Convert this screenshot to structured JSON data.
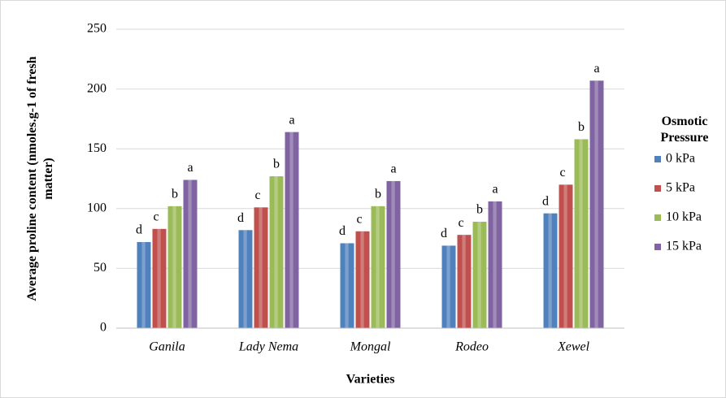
{
  "chart_data": {
    "type": "bar",
    "x_label": "Varieties",
    "y_label": "Average proline content (nmoles.g-1 of fresh matter)",
    "legend_title": "Osmotic Pressure",
    "categories": [
      "Ganila",
      "Lady Nema",
      "Mongal",
      "Rodeo",
      "Xewel"
    ],
    "series": [
      {
        "name": "0 kPa",
        "color": "#4f81bd",
        "values": [
          72,
          82,
          71,
          69,
          96
        ],
        "letters": [
          "d",
          "d",
          "d",
          "d",
          "d"
        ]
      },
      {
        "name": "5 kPa",
        "color": "#c0504d",
        "values": [
          83,
          101,
          81,
          78,
          120
        ],
        "letters": [
          "c",
          "c",
          "c",
          "c",
          "c"
        ]
      },
      {
        "name": "10 kPa",
        "color": "#9bbb59",
        "values": [
          102,
          127,
          102,
          89,
          158
        ],
        "letters": [
          "b",
          "b",
          "b",
          "b",
          "b"
        ]
      },
      {
        "name": "15 kPa",
        "color": "#8064a2",
        "values": [
          124,
          164,
          123,
          106,
          207
        ],
        "letters": [
          "a",
          "a",
          "a",
          "a",
          "a"
        ]
      }
    ],
    "ylim": [
      0,
      250
    ],
    "yticks": [
      0,
      50,
      100,
      150,
      200,
      250
    ],
    "grid": true,
    "legend": "right"
  }
}
